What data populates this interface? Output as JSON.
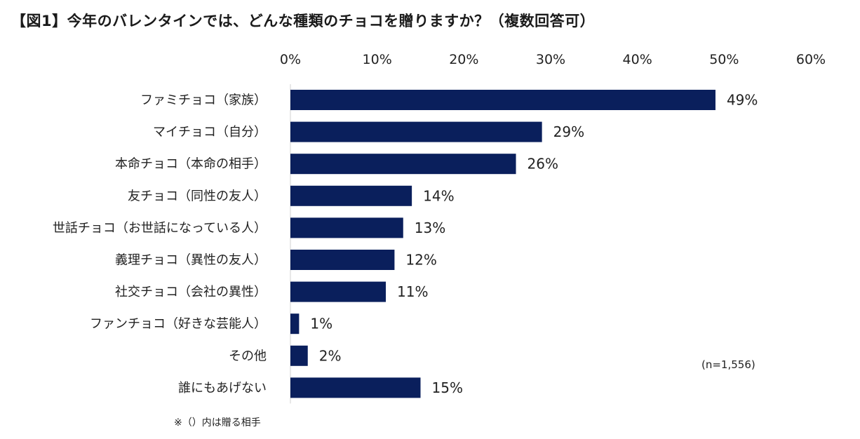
{
  "title": "【図1】今年のバレンタインでは、どんな種類のチョコを贈りますか？（複数回答可）",
  "sample_note": "(n=1,556)",
  "footnote": "※（）内は贈る相手",
  "colors": {
    "bar": "#0a1f5c"
  },
  "chart_data": {
    "type": "bar",
    "orientation": "horizontal",
    "title": "【図1】今年のバレンタインでは、どんな種類のチョコを贈りますか？（複数回答可）",
    "xlabel": "",
    "ylabel": "",
    "xlim": [
      0,
      60
    ],
    "x_ticks": [
      "0%",
      "10%",
      "20%",
      "30%",
      "40%",
      "50%",
      "60%"
    ],
    "x_axis_position": "top",
    "grid": false,
    "categories": [
      "ファミチョコ（家族）",
      "マイチョコ（自分）",
      "本命チョコ（本命の相手）",
      "友チョコ（同性の友人）",
      "世話チョコ（お世話になっている人）",
      "義理チョコ（異性の友人）",
      "社交チョコ（会社の異性）",
      "ファンチョコ（好きな芸能人）",
      "その他",
      "誰にもあげない"
    ],
    "values": [
      49,
      29,
      26,
      14,
      13,
      12,
      11,
      1,
      2,
      15
    ],
    "value_labels": [
      "49%",
      "29%",
      "26%",
      "14%",
      "13%",
      "12%",
      "11%",
      "1%",
      "2%",
      "15%"
    ]
  }
}
